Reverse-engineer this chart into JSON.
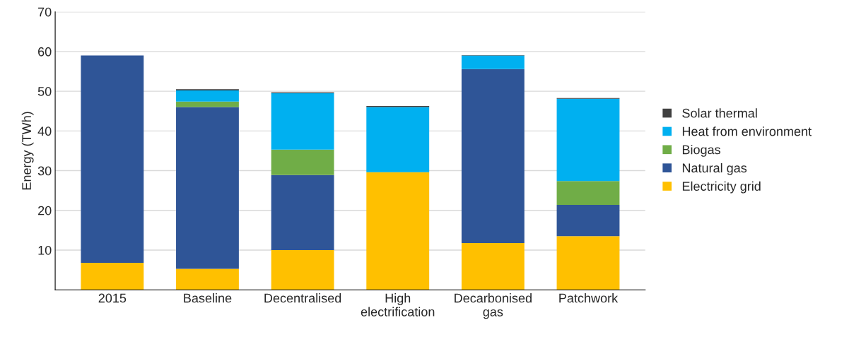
{
  "chart_data": {
    "type": "bar",
    "stacked": true,
    "ylabel": "Energy (TWh)",
    "categories": [
      "2015",
      "Baseline",
      "Decentralised",
      "High\nelectrification",
      "Decarbonised\ngas",
      "Patchwork"
    ],
    "series": [
      {
        "name": "Electricity grid",
        "color": "#ffc000",
        "values": [
          6.8,
          5.3,
          10.0,
          29.6,
          11.8,
          13.5
        ]
      },
      {
        "name": "Natural gas",
        "color": "#2f5597",
        "values": [
          52.2,
          40.7,
          18.9,
          0,
          43.8,
          7.9
        ]
      },
      {
        "name": "Biogas",
        "color": "#70ad47",
        "values": [
          0,
          1.4,
          6.4,
          0,
          0,
          6.0
        ]
      },
      {
        "name": "Heat from environment",
        "color": "#00b0f0",
        "values": [
          0,
          2.8,
          14.2,
          16.4,
          3.4,
          20.7
        ]
      },
      {
        "name": "Solar thermal",
        "color": "#404040",
        "values": [
          0,
          0.3,
          0.2,
          0.3,
          0.1,
          0.2
        ]
      }
    ],
    "ylim": [
      0,
      70
    ],
    "yticks": [
      10,
      20,
      30,
      40,
      50,
      60,
      70
    ],
    "grid": "y",
    "legend": "right"
  }
}
